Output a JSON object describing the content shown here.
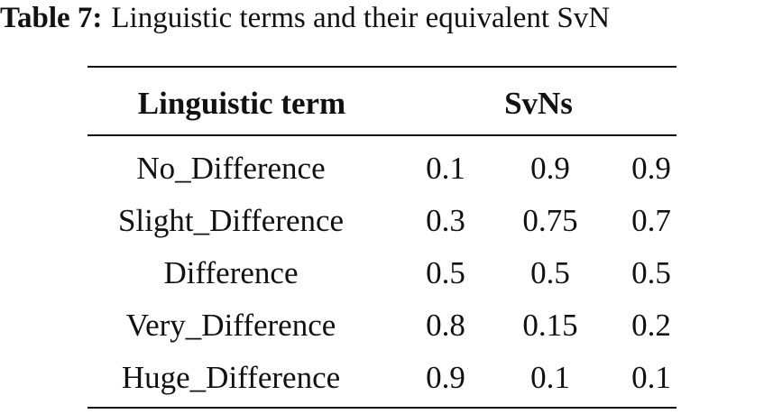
{
  "caption": {
    "label": "Table 7:",
    "text": "Linguistic terms and their equivalent SvN"
  },
  "table": {
    "header": [
      "Linguistic term",
      "SvNs"
    ],
    "rows": [
      [
        "No_Difference",
        "0.1",
        "0.9",
        "0.9"
      ],
      [
        "Slight_Difference",
        "0.3",
        "0.75",
        "0.7"
      ],
      [
        "Difference",
        "0.5",
        "0.5",
        "0.5"
      ],
      [
        "Very_Difference",
        "0.8",
        "0.15",
        "0.2"
      ],
      [
        "Huge_Difference",
        "0.9",
        "0.1",
        "0.1"
      ]
    ]
  }
}
